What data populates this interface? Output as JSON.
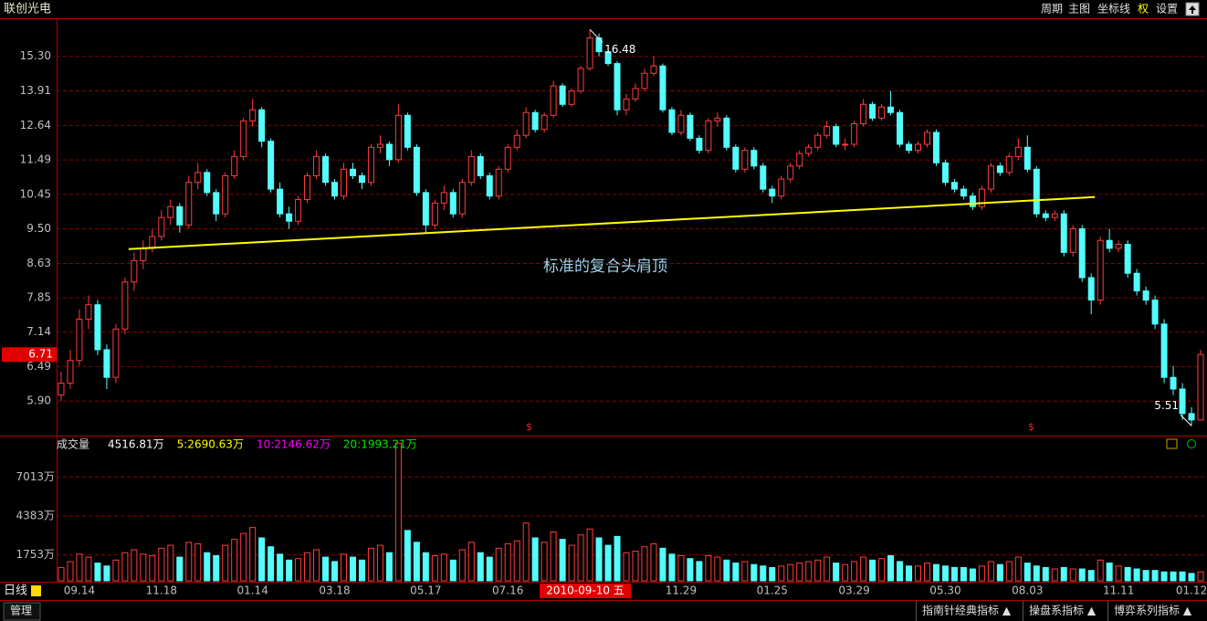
{
  "title": "联创光电",
  "menu": [
    "周期",
    "主图",
    "坐标线",
    "权",
    "设置"
  ],
  "chart_data": {
    "type": "candlestick",
    "categories": [
      null,
      null,
      "09.14",
      null,
      null,
      null,
      null,
      null,
      null,
      null,
      null,
      "11.18",
      null,
      null,
      null,
      null,
      null,
      null,
      null,
      null,
      null,
      "01.14",
      null,
      null,
      null,
      null,
      null,
      null,
      null,
      null,
      "03.18",
      null,
      null,
      null,
      null,
      null,
      null,
      null,
      null,
      null,
      "05.17",
      null,
      null,
      null,
      null,
      null,
      null,
      null,
      null,
      "07.16",
      null,
      null,
      null,
      null,
      null,
      null,
      null,
      null,
      null,
      null,
      null,
      null,
      null,
      null,
      null,
      null,
      null,
      null,
      "11.29",
      null,
      null,
      null,
      null,
      null,
      null,
      null,
      null,
      null,
      "01.25",
      null,
      null,
      null,
      null,
      null,
      null,
      null,
      null,
      "03.29",
      null,
      null,
      null,
      null,
      null,
      null,
      null,
      null,
      null,
      "05.30",
      null,
      null,
      null,
      null,
      null,
      null,
      null,
      null,
      "08.03",
      null,
      null,
      null,
      null,
      null,
      null,
      null,
      null,
      null,
      "11.11",
      null,
      null,
      null,
      null,
      null,
      null,
      null,
      "01.12",
      null
    ],
    "open": [
      6.0,
      6.2,
      6.6,
      7.4,
      7.7,
      6.8,
      6.3,
      7.2,
      8.2,
      8.7,
      9.0,
      9.3,
      9.8,
      10.1,
      9.6,
      10.8,
      11.1,
      10.5,
      9.9,
      11.0,
      11.6,
      12.8,
      13.2,
      12.1,
      10.6,
      9.9,
      9.7,
      10.3,
      11.0,
      11.6,
      10.8,
      10.4,
      11.2,
      11.0,
      10.8,
      11.9,
      12.0,
      11.5,
      13.0,
      11.9,
      10.5,
      9.6,
      10.2,
      10.5,
      9.9,
      10.8,
      11.6,
      11.0,
      10.4,
      11.2,
      11.9,
      12.3,
      13.1,
      12.5,
      13.0,
      14.1,
      13.4,
      13.9,
      14.8,
      16.1,
      15.5,
      15.0,
      13.2,
      13.6,
      14.0,
      14.6,
      14.9,
      13.2,
      12.4,
      13.0,
      12.2,
      11.8,
      12.8,
      12.9,
      11.9,
      11.2,
      11.8,
      11.3,
      10.6,
      10.4,
      10.9,
      11.3,
      11.7,
      11.9,
      12.3,
      12.6,
      12.0,
      12.0,
      12.7,
      13.4,
      12.9,
      13.3,
      13.1,
      12.0,
      11.8,
      12.0,
      12.4,
      11.4,
      10.8,
      10.6,
      10.4,
      10.1,
      10.6,
      11.3,
      11.1,
      11.6,
      11.9,
      11.2,
      9.9,
      9.8,
      9.9,
      8.9,
      9.5,
      8.3,
      7.8,
      9.2,
      9.0,
      9.1,
      8.4,
      8.0,
      7.8,
      7.3,
      6.3,
      6.1,
      5.7,
      5.6
    ],
    "high": [
      6.4,
      6.8,
      7.6,
      7.9,
      7.8,
      6.9,
      7.3,
      8.3,
      8.9,
      9.2,
      9.5,
      10.0,
      10.3,
      10.2,
      11.0,
      11.4,
      11.2,
      10.6,
      11.1,
      11.8,
      12.9,
      13.6,
      13.3,
      12.2,
      10.8,
      10.1,
      10.4,
      11.1,
      11.8,
      11.7,
      10.9,
      11.4,
      11.4,
      11.1,
      12.0,
      12.3,
      12.1,
      13.4,
      13.1,
      12.0,
      10.6,
      10.3,
      10.7,
      10.6,
      10.9,
      11.8,
      11.7,
      11.1,
      11.3,
      12.0,
      12.5,
      13.3,
      13.2,
      13.1,
      14.3,
      14.2,
      14.0,
      14.9,
      16.48,
      16.3,
      15.7,
      15.1,
      13.8,
      14.2,
      14.8,
      15.3,
      15.0,
      13.3,
      13.2,
      13.1,
      12.3,
      12.9,
      13.1,
      13.0,
      12.0,
      11.9,
      11.9,
      11.4,
      10.7,
      11.0,
      11.4,
      11.8,
      12.0,
      12.4,
      12.8,
      12.7,
      12.2,
      12.8,
      13.6,
      13.5,
      13.4,
      13.9,
      13.2,
      12.1,
      12.1,
      12.5,
      12.5,
      11.5,
      10.9,
      10.7,
      10.5,
      10.7,
      11.4,
      11.4,
      11.7,
      12.2,
      12.3,
      11.3,
      10.0,
      10.0,
      10.0,
      9.6,
      9.6,
      8.4,
      9.3,
      9.5,
      9.2,
      9.2,
      8.5,
      8.1,
      7.9,
      7.4,
      6.5,
      6.2,
      5.8,
      6.8
    ],
    "low": [
      5.9,
      6.1,
      6.5,
      7.2,
      6.7,
      6.1,
      6.2,
      7.1,
      8.0,
      8.5,
      8.9,
      9.2,
      9.6,
      9.4,
      9.5,
      10.6,
      10.4,
      9.7,
      9.8,
      10.9,
      11.5,
      12.6,
      11.9,
      10.5,
      9.8,
      9.5,
      9.6,
      10.2,
      10.9,
      10.7,
      10.3,
      10.3,
      10.9,
      10.6,
      10.7,
      11.7,
      11.3,
      11.4,
      11.8,
      10.4,
      9.4,
      9.5,
      10.0,
      9.8,
      9.8,
      10.7,
      10.9,
      10.3,
      10.3,
      11.1,
      11.8,
      12.2,
      12.4,
      12.4,
      12.9,
      13.3,
      13.3,
      13.8,
      14.7,
      15.3,
      14.9,
      13.0,
      13.0,
      13.5,
      13.9,
      14.5,
      13.1,
      12.3,
      12.3,
      12.1,
      11.7,
      11.7,
      12.6,
      11.8,
      11.1,
      11.1,
      11.2,
      10.5,
      10.2,
      10.3,
      10.8,
      11.2,
      11.6,
      11.8,
      12.2,
      11.9,
      11.8,
      11.9,
      12.6,
      12.8,
      12.8,
      13.0,
      11.9,
      11.7,
      11.7,
      11.9,
      11.3,
      10.7,
      10.5,
      10.3,
      10.0,
      10.0,
      10.5,
      11.0,
      11.0,
      11.5,
      11.1,
      9.8,
      9.7,
      9.7,
      8.8,
      8.8,
      8.2,
      7.5,
      7.7,
      8.9,
      8.9,
      8.3,
      7.9,
      7.7,
      7.2,
      6.2,
      6.0,
      5.6,
      5.51,
      5.6
    ],
    "close": [
      6.2,
      6.6,
      7.4,
      7.7,
      6.8,
      6.3,
      7.2,
      8.2,
      8.7,
      9.0,
      9.3,
      9.8,
      10.1,
      9.6,
      10.8,
      11.1,
      10.5,
      9.9,
      11.0,
      11.6,
      12.8,
      13.2,
      12.1,
      10.6,
      9.9,
      9.7,
      10.3,
      11.0,
      11.6,
      10.8,
      10.4,
      11.2,
      11.0,
      10.8,
      11.9,
      12.0,
      11.5,
      13.0,
      11.9,
      10.5,
      9.6,
      10.2,
      10.5,
      9.9,
      10.8,
      11.6,
      11.0,
      10.4,
      11.2,
      11.9,
      12.3,
      13.1,
      12.5,
      13.0,
      14.1,
      13.4,
      13.9,
      14.8,
      16.1,
      15.5,
      15.0,
      13.2,
      13.6,
      14.0,
      14.6,
      14.9,
      13.2,
      12.4,
      13.0,
      12.2,
      11.8,
      12.8,
      12.9,
      11.9,
      11.2,
      11.8,
      11.3,
      10.6,
      10.4,
      10.9,
      11.3,
      11.7,
      11.9,
      12.3,
      12.6,
      12.0,
      12.0,
      12.7,
      13.4,
      12.9,
      13.3,
      13.1,
      12.0,
      11.8,
      12.0,
      12.4,
      11.4,
      10.8,
      10.6,
      10.4,
      10.1,
      10.6,
      11.3,
      11.1,
      11.6,
      11.9,
      11.2,
      9.9,
      9.8,
      9.9,
      8.9,
      9.5,
      8.3,
      7.8,
      9.2,
      9.0,
      9.1,
      8.4,
      8.0,
      7.8,
      7.3,
      6.3,
      6.1,
      5.7,
      5.6,
      6.71
    ],
    "ylim": [
      5.39,
      17.0
    ],
    "log_scale": true,
    "yticks": [
      {
        "value": 15.3,
        "label": "15.30"
      },
      13.91,
      12.64,
      11.49,
      10.45,
      {
        "value": 9.5,
        "label": "9.50"
      },
      8.63,
      7.85,
      7.14,
      6.49,
      {
        "value": 5.9,
        "label": "5.90"
      }
    ],
    "grid": true,
    "up_color": "#ff3c3c",
    "down_color": "#54fcfc",
    "annotation": "标准的复合头肩顶",
    "neckline": {
      "x": [
        7.4,
        113.4
      ],
      "y": [
        8.98,
        10.37
      ],
      "color": "#ffff00"
    },
    "event_marks": [
      "$",
      "$"
    ],
    "cursor_date": "2010-09-10 五",
    "period": "日线",
    "volume": {
      "type": "bar",
      "title": "成交量",
      "values": [
        900,
        1300,
        1800,
        1600,
        1200,
        1000,
        1400,
        1900,
        2100,
        1800,
        1700,
        2200,
        2400,
        1600,
        2600,
        2500,
        1900,
        1700,
        2400,
        2800,
        3200,
        3600,
        2900,
        2300,
        1800,
        1400,
        1500,
        1900,
        2100,
        1600,
        1300,
        1800,
        1600,
        1400,
        2200,
        2400,
        1900,
        9300,
        3400,
        2600,
        1900,
        1700,
        1800,
        1400,
        2100,
        2600,
        1900,
        1600,
        2200,
        2500,
        2700,
        3900,
        2900,
        2600,
        3300,
        2800,
        2400,
        3100,
        3500,
        2900,
        2400,
        3000,
        1900,
        2000,
        2300,
        2500,
        2200,
        1800,
        1700,
        1500,
        1300,
        1700,
        1600,
        1400,
        1200,
        1300,
        1100,
        1000,
        900,
        1000,
        1100,
        1200,
        1300,
        1400,
        1600,
        1200,
        1100,
        1300,
        1600,
        1400,
        1500,
        1700,
        1300,
        1000,
        1000,
        1200,
        1100,
        1000,
        900,
        900,
        800,
        1000,
        1300,
        1100,
        1300,
        1600,
        1200,
        1000,
        900,
        800,
        900,
        800,
        800,
        700,
        1400,
        1200,
        1000,
        900,
        800,
        700,
        700,
        600,
        600,
        600,
        500,
        600
      ],
      "ylim": [
        0,
        9500
      ],
      "yticks": [
        {
          "value": 1753,
          "label": "1753万"
        },
        {
          "value": 4383,
          "label": "4383万"
        },
        {
          "value": 7013,
          "label": "7013万"
        }
      ],
      "legend": [
        {
          "label": "4516.81万",
          "color": "#ffffff"
        },
        {
          "label": "5:2690.63万",
          "color": "#ffff00"
        },
        {
          "label": "10:2146.62万",
          "color": "#ff00ff"
        },
        {
          "label": "20:1993.21万",
          "color": "#00e600"
        }
      ]
    }
  },
  "footer": {
    "manage": "管理",
    "tabs": [
      "指南针经典指标 ▲",
      "操盘系指标 ▲",
      "博弈系列指标 ▲"
    ]
  }
}
